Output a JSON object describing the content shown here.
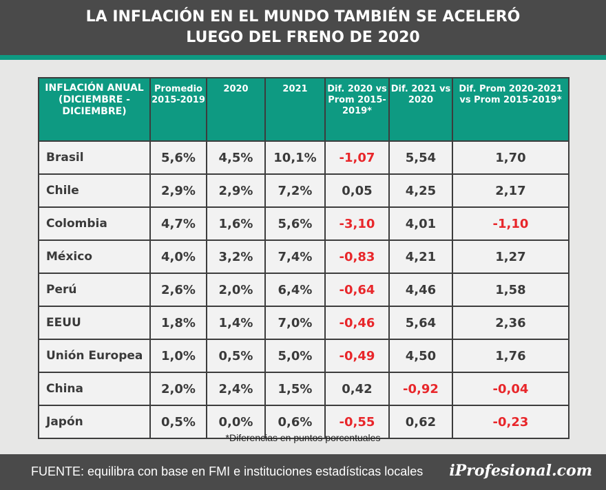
{
  "header": {
    "title_line1": "LA INFLACIÓN EN EL MUNDO TAMBIÉN SE ACELERÓ",
    "title_line2": "LUEGO DEL FRENO DE 2020"
  },
  "colors": {
    "header_bg": "#4a4a4a",
    "accent_green": "#0e9a82",
    "negative_red": "#e8262a",
    "cell_bg": "#f2f2f2"
  },
  "chart_data": {
    "type": "table",
    "title": "LA INFLACIÓN EN EL MUNDO TAMBIÉN SE ACELERÓ LUEGO DEL FRENO DE 2020",
    "columns": [
      "INFLACIÓN ANUAL (DICIEMBRE -DICIEMBRE)",
      "Promedio 2015-2019",
      "2020",
      "2021",
      "Dif. 2020 vs Prom 2015-2019*",
      "Dif. 2021 vs 2020",
      "Dif. Prom 2020-2021 vs Prom 2015-2019*"
    ],
    "rows": [
      [
        "Brasil",
        "5,6%",
        "4,5%",
        "10,1%",
        "-1,07",
        "5,54",
        "1,70"
      ],
      [
        "Chile",
        "2,9%",
        "2,9%",
        "7,2%",
        "0,05",
        "4,25",
        "2,17"
      ],
      [
        "Colombia",
        "4,7%",
        "1,6%",
        "5,6%",
        "-3,10",
        "4,01",
        "-1,10"
      ],
      [
        "México",
        "4,0%",
        "3,2%",
        "7,4%",
        "-0,83",
        "4,21",
        "1,27"
      ],
      [
        "Perú",
        "2,6%",
        "2,0%",
        "6,4%",
        "-0,64",
        "4,46",
        "1,58"
      ],
      [
        "EEUU",
        "1,8%",
        "1,4%",
        "7,0%",
        "-0,46",
        "5,64",
        "2,36"
      ],
      [
        "Unión Europea",
        "1,0%",
        "0,5%",
        "5,0%",
        "-0,49",
        "4,50",
        "1,76"
      ],
      [
        "China",
        "2,0%",
        "2,4%",
        "1,5%",
        "0,42",
        "-0,92",
        "-0,04"
      ],
      [
        "Japón",
        "0,5%",
        "0,0%",
        "0,6%",
        "-0,55",
        "0,62",
        "-0,23"
      ]
    ]
  },
  "footnote": "*Diferencias en puntos porcentuales",
  "footer": {
    "source": "FUENTE: equilibra con base en FMI e instituciones estadísticas locales",
    "logo": "iProfesional.com"
  }
}
